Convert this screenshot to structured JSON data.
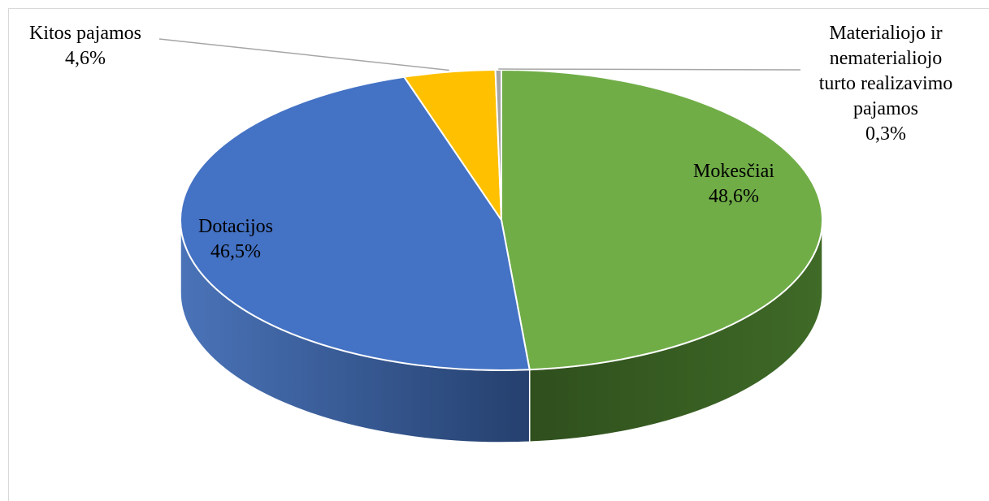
{
  "chart_data": {
    "type": "pie",
    "style": "3d",
    "title": "",
    "slices": [
      {
        "label": "Mokesčiai",
        "percent_label": "48,6%",
        "value": 48.6,
        "color": "#70ad47",
        "side_color": "#3e6a27"
      },
      {
        "label": "Dotacijos",
        "percent_label": "46,5%",
        "value": 46.5,
        "color": "#4472c4",
        "side_color": "#2f5597"
      },
      {
        "label": "Kitos pajamos",
        "percent_label": "4,6%",
        "value": 4.6,
        "color": "#ffc000",
        "side_color": "#bf9000"
      },
      {
        "label": "Materialiojo ir nematerialiojo turto realizavimo pajamos",
        "percent_label": "0,3%",
        "value": 0.3,
        "color": "#a5a5a5",
        "side_color": "#7b7b7b"
      }
    ],
    "labels_display": [
      {
        "lines": [
          "Mokesčiai",
          "48,6%"
        ]
      },
      {
        "lines": [
          "Dotacijos",
          "46,5%"
        ]
      },
      {
        "lines": [
          "Kitos pajamos",
          "4,6%"
        ]
      },
      {
        "lines": [
          "Materialiojo ir",
          "nematerialiojo",
          "turto realizavimo",
          "pajamos",
          "0,3%"
        ]
      }
    ]
  }
}
